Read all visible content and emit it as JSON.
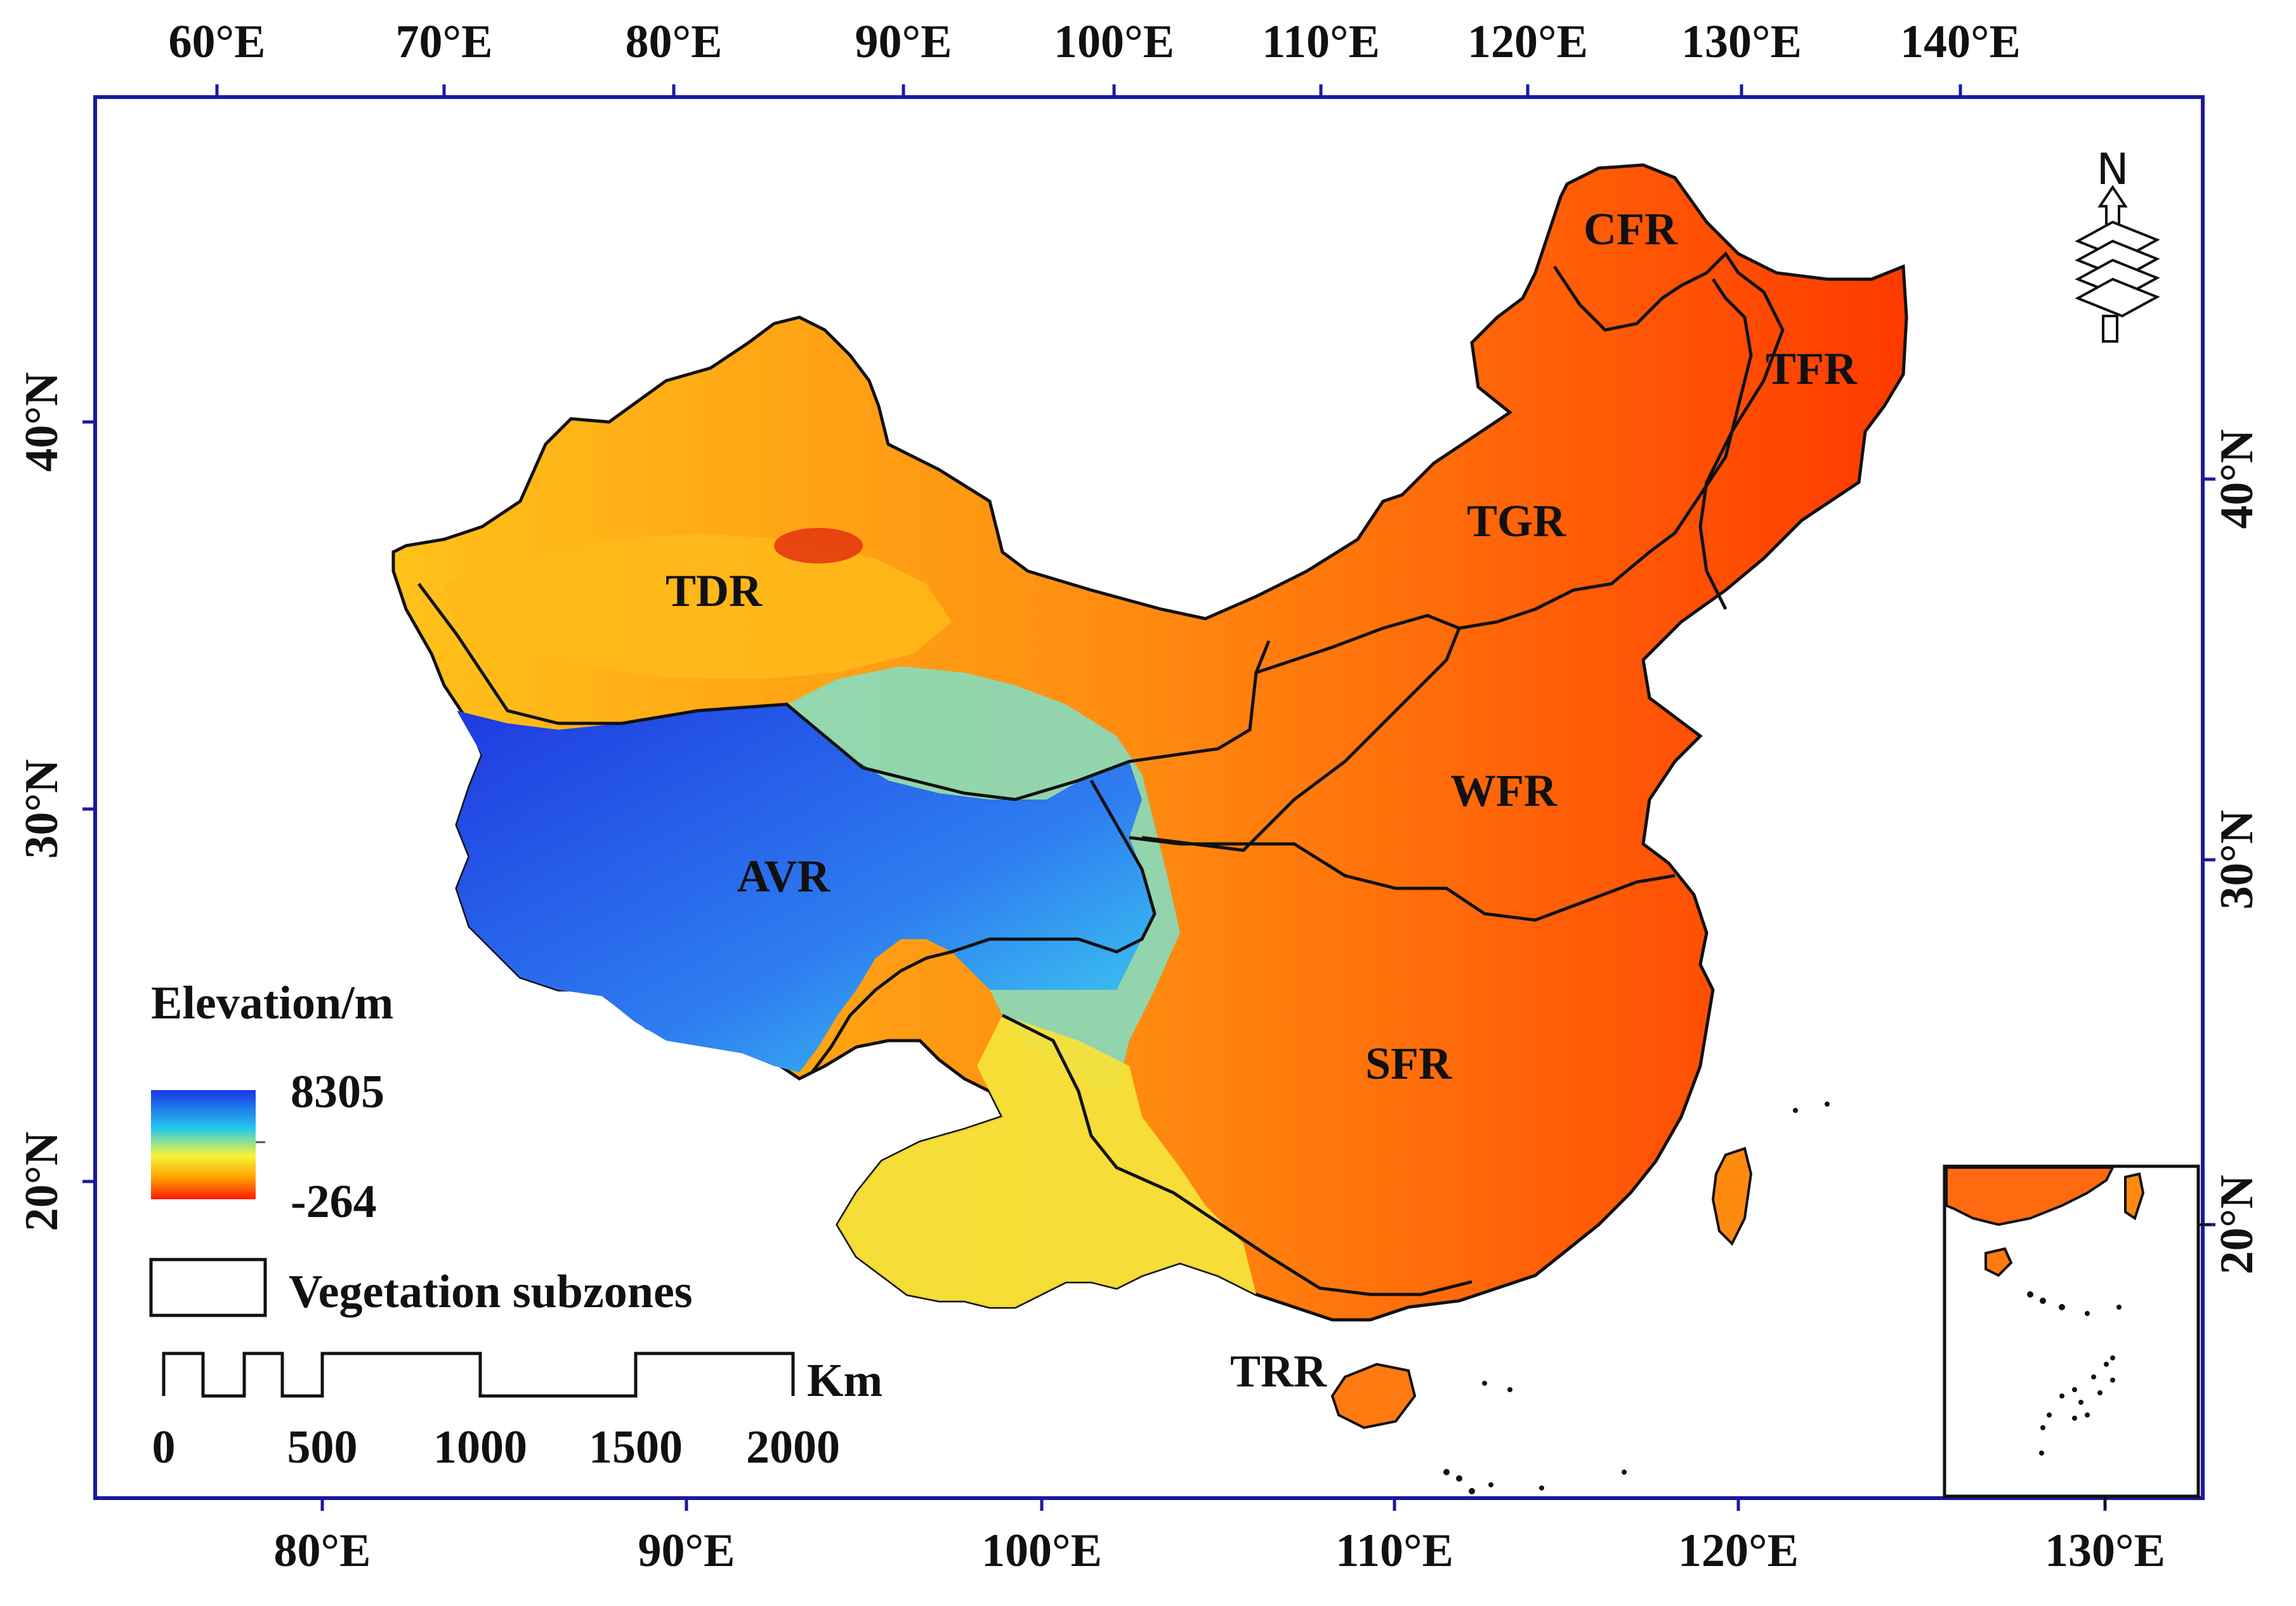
{
  "axes": {
    "top_lon_labels": [
      "60°E",
      "70°E",
      "80°E",
      "90°E",
      "100°E",
      "110°E",
      "120°E",
      "130°E",
      "140°E"
    ],
    "bottom_lon_labels": [
      "80°E",
      "90°E",
      "100°E",
      "110°E",
      "120°E",
      "130°E"
    ],
    "left_lat_labels": [
      "40°N",
      "30°N",
      "20°N"
    ],
    "right_lat_labels": [
      "40°N",
      "30°N",
      "20°N"
    ],
    "inset_lon_label": "130°E",
    "inset_lat_label": "20°N"
  },
  "regions": [
    "CFR",
    "TFR",
    "TGR",
    "TDR",
    "WFR",
    "AVR",
    "SFR",
    "TRR"
  ],
  "legend": {
    "elevation_title": "Elevation/m",
    "elevation_max": "8305",
    "elevation_min": "-264",
    "boundary_label": "Vegetation subzones"
  },
  "scale_bar": {
    "ticks": [
      "0",
      "500",
      "1000",
      "1500",
      "2000"
    ],
    "unit": "Km"
  },
  "north_arrow": {
    "letter": "N"
  },
  "colors": {
    "frame": "#1a1aa0",
    "low": "#ff2000",
    "mid": "#ffff33",
    "high": "#1030e0"
  }
}
